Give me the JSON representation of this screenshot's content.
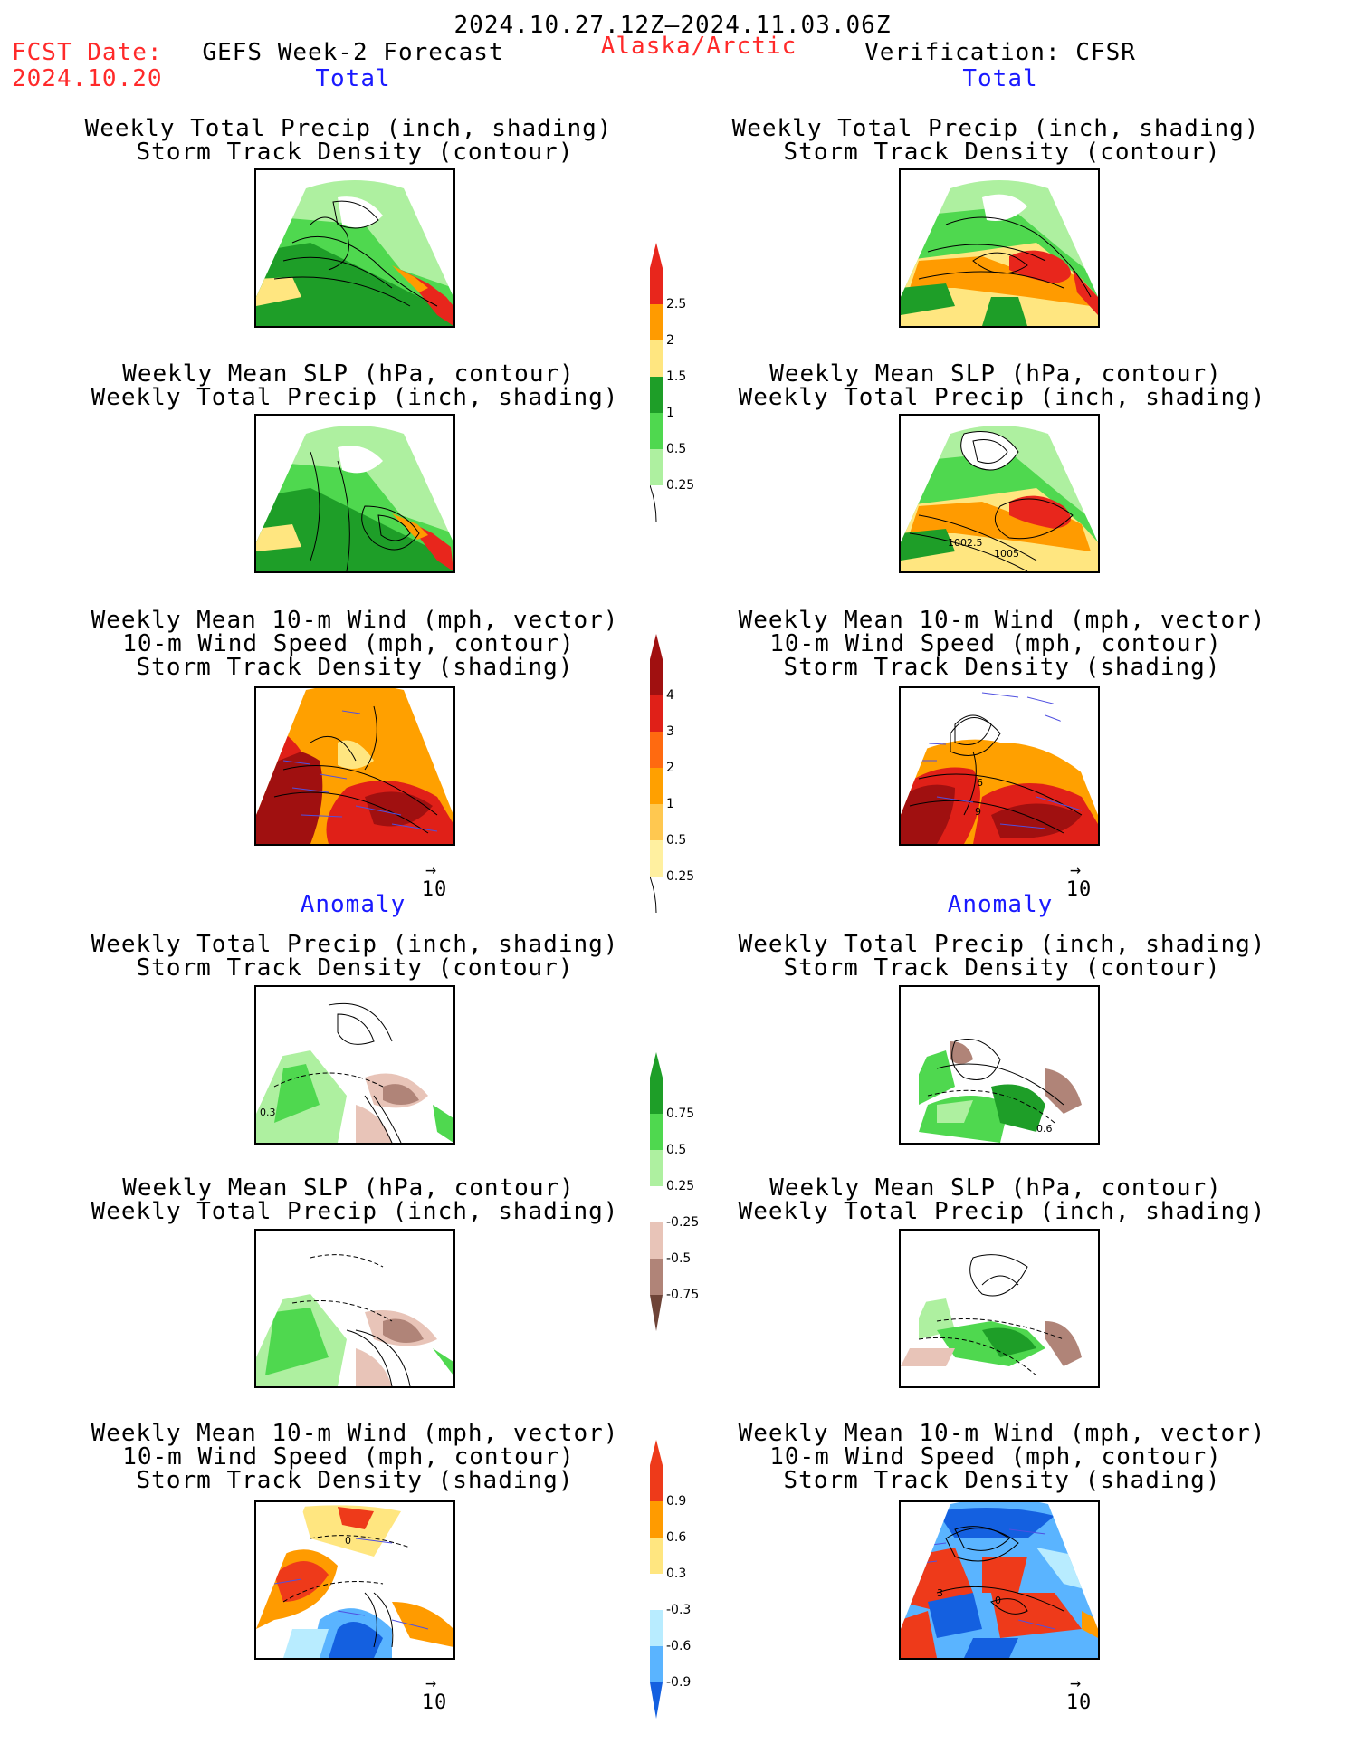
{
  "header": {
    "period": "2024.10.27.12Z–2024.11.03.06Z",
    "fcst_label": "FCST Date:",
    "fcst_date": "2024.10.20",
    "model": "GEFS Week-2 Forecast",
    "region": "Alaska/Arctic",
    "verification": "Verification: CFSR"
  },
  "sections": {
    "total": "Total",
    "anomaly": "Anomaly"
  },
  "titles": {
    "precip_track": [
      "Weekly Total Precip (inch, shading)",
      "Storm Track Density (contour)"
    ],
    "slp_precip": [
      "Weekly Mean SLP (hPa, contour)",
      "Weekly Total Precip (inch, shading)"
    ],
    "wind_track": [
      "Weekly Mean 10-m Wind (mph, vector)",
      "10-m Wind Speed (mph, contour)",
      "Storm Track Density (shading)"
    ]
  },
  "vector_scale": "10",
  "contour_labels": {
    "slp_obs_a": "1002.5",
    "slp_obs_b": "1005",
    "wind_obs_a": "6",
    "wind_obs_b": "9",
    "anom_fc_precip": "0.3",
    "anom_obs_precip": "0.6",
    "anom_fc_wind": "0",
    "anom_obs_wind_a": "3",
    "anom_obs_wind_b": "0"
  },
  "colorbars": {
    "precip_total": {
      "labels": [
        "2.5",
        "2",
        "1.5",
        "1",
        "0.5",
        "0.25"
      ],
      "colors": [
        "#e8261c",
        "#ff9b00",
        "#ffe680",
        "#1e9e28",
        "#4fd84f",
        "#aef0a0"
      ]
    },
    "track_total": {
      "labels": [
        "4",
        "3",
        "2",
        "1",
        "0.5",
        "0.25"
      ],
      "colors": [
        "#a01010",
        "#e02018",
        "#ff6a10",
        "#ffa000",
        "#ffc850",
        "#fff0a0"
      ]
    },
    "precip_anom": {
      "labels": [
        "0.75",
        "0.5",
        "0.25",
        "-0.25",
        "-0.5",
        "-0.75"
      ],
      "colors": [
        "#1e9e28",
        "#4fd84f",
        "#aef0a0",
        "#ffffff",
        "#e8c4b8",
        "#b08478",
        "#6e4438"
      ]
    },
    "wind_anom": {
      "labels": [
        "0.9",
        "0.6",
        "0.3",
        "-0.3",
        "-0.6",
        "-0.9"
      ],
      "colors": [
        "#ee3a1a",
        "#ff9b00",
        "#ffe680",
        "#ffffff",
        "#b8ecff",
        "#5ab4ff",
        "#1460e0"
      ]
    }
  }
}
